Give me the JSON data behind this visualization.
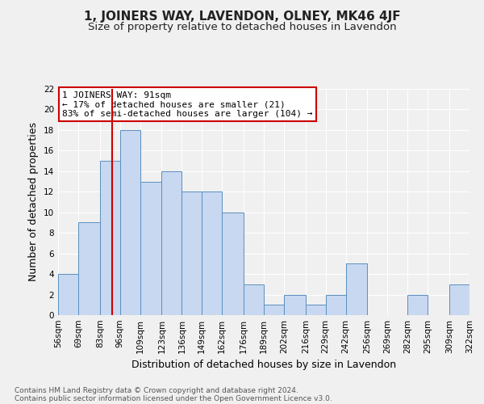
{
  "title": "1, JOINERS WAY, LAVENDON, OLNEY, MK46 4JF",
  "subtitle": "Size of property relative to detached houses in Lavendon",
  "xlabel": "Distribution of detached houses by size in Lavendon",
  "ylabel": "Number of detached properties",
  "bin_edges": [
    56,
    69,
    83,
    96,
    109,
    123,
    136,
    149,
    162,
    176,
    189,
    202,
    216,
    229,
    242,
    256,
    269,
    282,
    295,
    309,
    322
  ],
  "bin_counts": [
    4,
    9,
    15,
    18,
    13,
    14,
    12,
    12,
    10,
    3,
    1,
    2,
    1,
    2,
    5,
    0,
    0,
    2,
    0,
    3
  ],
  "bar_color": "#c8d8f0",
  "bar_edge_color": "#5a8fc0",
  "property_line_x": 91,
  "property_line_color": "#cc0000",
  "annotation_text": "1 JOINERS WAY: 91sqm\n← 17% of detached houses are smaller (21)\n83% of semi-detached houses are larger (104) →",
  "annotation_box_color": "#ffffff",
  "annotation_box_edge_color": "#cc0000",
  "ylim": [
    0,
    22
  ],
  "yticks": [
    0,
    2,
    4,
    6,
    8,
    10,
    12,
    14,
    16,
    18,
    20,
    22
  ],
  "tick_labels": [
    "56sqm",
    "69sqm",
    "83sqm",
    "96sqm",
    "109sqm",
    "123sqm",
    "136sqm",
    "149sqm",
    "162sqm",
    "176sqm",
    "189sqm",
    "202sqm",
    "216sqm",
    "229sqm",
    "242sqm",
    "256sqm",
    "269sqm",
    "282sqm",
    "295sqm",
    "309sqm",
    "322sqm"
  ],
  "footer_line1": "Contains HM Land Registry data © Crown copyright and database right 2024.",
  "footer_line2": "Contains public sector information licensed under the Open Government Licence v3.0.",
  "background_color": "#f0f0f0",
  "grid_color": "#ffffff",
  "title_fontsize": 11,
  "subtitle_fontsize": 9.5,
  "axis_label_fontsize": 9,
  "tick_fontsize": 7.5,
  "annotation_fontsize": 8,
  "footer_fontsize": 6.5
}
